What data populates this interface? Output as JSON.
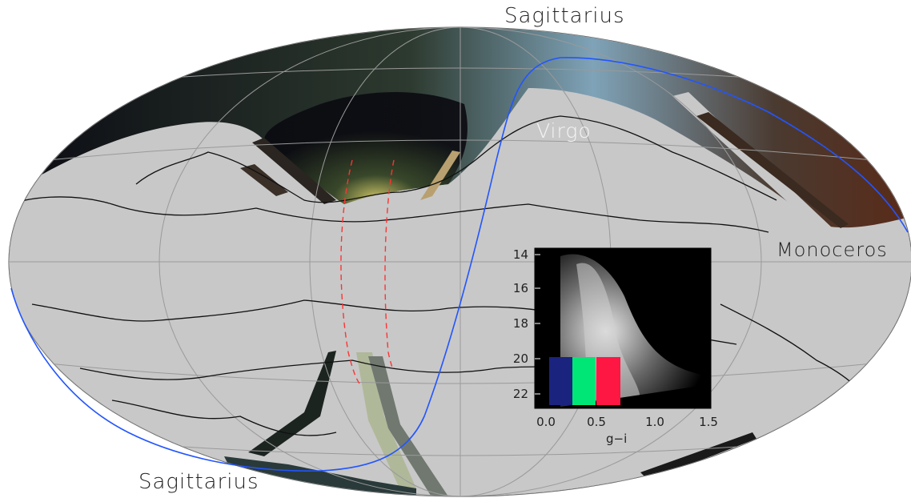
{
  "labels": {
    "sagittarius_top": "Sagittarius",
    "virgo": "Virgo",
    "monoceros": "Monoceros",
    "sagittarius_bottom": "Sagittarius"
  },
  "inset": {
    "xlabel": "g−i",
    "x_ticks": [
      "0.0",
      "0.5",
      "1.0",
      "1.5"
    ],
    "y_ticks": [
      "14",
      "16",
      "18",
      "20",
      "22"
    ],
    "color_boxes": [
      "#1a237e",
      "#00e676",
      "#ff1744"
    ]
  },
  "colors": {
    "sky_background": "#c8c8c8",
    "ecliptic_curve": "#2255ff",
    "dashed_curves": "#ff3333"
  }
}
